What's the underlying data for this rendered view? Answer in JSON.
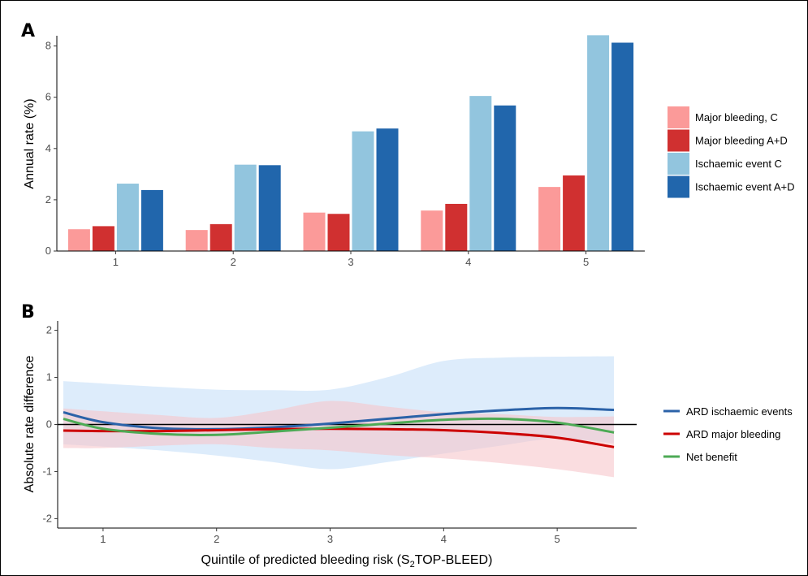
{
  "chart_data": [
    {
      "panel": "A",
      "type": "bar",
      "ylabel": "Annual rate (%)",
      "xlabel": "",
      "categories": [
        "1",
        "2",
        "3",
        "4",
        "5"
      ],
      "ylim": [
        0,
        8.4
      ],
      "yticks": [
        "0",
        "2",
        "4",
        "6",
        "8"
      ],
      "grid": false,
      "legend_position": "right",
      "series": [
        {
          "name": "Major bleeding, C",
          "color": "#fb9a99",
          "values": [
            0.85,
            0.82,
            1.5,
            1.58,
            2.5
          ]
        },
        {
          "name": "Major bleeding A+D",
          "color": "#d03030",
          "values": [
            0.97,
            1.05,
            1.45,
            1.84,
            2.95
          ]
        },
        {
          "name": "Ischaemic event C",
          "color": "#92c5de",
          "values": [
            2.63,
            3.37,
            4.67,
            6.05,
            8.42
          ]
        },
        {
          "name": "Ischaemic event A+D",
          "color": "#2166ac",
          "values": [
            2.38,
            3.35,
            4.78,
            5.68,
            8.13
          ]
        }
      ]
    },
    {
      "panel": "B",
      "type": "line",
      "ylabel": "Absolute rate difference",
      "xlabel_prefix": "Quintile of predicted bleeding risk (S",
      "xlabel_sub": "2",
      "xlabel_suffix": "TOP-BLEED)",
      "xlim": [
        0.6,
        5.7
      ],
      "ylim": [
        -2.2,
        2.2
      ],
      "xticks": [
        "1",
        "2",
        "3",
        "4",
        "5"
      ],
      "yticks": [
        "-2",
        "-1",
        "0",
        "1",
        "2"
      ],
      "reference_line_y": 0,
      "grid": false,
      "legend_position": "right",
      "series": [
        {
          "name": "ARD ischaemic events",
          "color": "#2b62a8",
          "band_color": "#c6e0f8",
          "x": [
            0.65,
            1.0,
            1.5,
            2.0,
            2.5,
            3.0,
            3.5,
            4.0,
            4.5,
            5.0,
            5.5
          ],
          "y": [
            0.26,
            0.05,
            -0.08,
            -0.1,
            -0.06,
            0.02,
            0.12,
            0.22,
            0.3,
            0.35,
            0.31
          ],
          "upper": [
            0.92,
            0.87,
            0.8,
            0.74,
            0.73,
            0.74,
            1.0,
            1.35,
            1.42,
            1.44,
            1.45
          ],
          "lower": [
            -0.42,
            -0.47,
            -0.55,
            -0.66,
            -0.8,
            -0.95,
            -0.8,
            -0.62,
            -0.45,
            -0.3,
            -0.4
          ]
        },
        {
          "name": "ARD major bleeding",
          "color": "#cc0000",
          "band_color": "#f7c6cc",
          "x": [
            0.65,
            1.0,
            1.5,
            2.0,
            2.5,
            3.0,
            3.5,
            4.0,
            4.5,
            5.0,
            5.5
          ],
          "y": [
            -0.13,
            -0.14,
            -0.14,
            -0.12,
            -0.1,
            -0.09,
            -0.1,
            -0.12,
            -0.18,
            -0.28,
            -0.48
          ],
          "upper": [
            0.34,
            0.28,
            0.2,
            0.14,
            0.3,
            0.5,
            0.38,
            0.26,
            0.22,
            0.16,
            0.17
          ],
          "lower": [
            -0.5,
            -0.5,
            -0.45,
            -0.42,
            -0.5,
            -0.55,
            -0.65,
            -0.72,
            -0.82,
            -0.95,
            -1.12
          ]
        },
        {
          "name": "Net benefit",
          "color": "#4daa55",
          "x": [
            0.65,
            1.0,
            1.5,
            2.0,
            2.5,
            3.0,
            3.5,
            4.0,
            4.5,
            5.0,
            5.5
          ],
          "y": [
            0.12,
            -0.09,
            -0.2,
            -0.22,
            -0.15,
            -0.07,
            0.02,
            0.1,
            0.12,
            0.04,
            -0.17
          ]
        }
      ]
    }
  ],
  "panels": {
    "a_letter": "A",
    "b_letter": "B"
  }
}
